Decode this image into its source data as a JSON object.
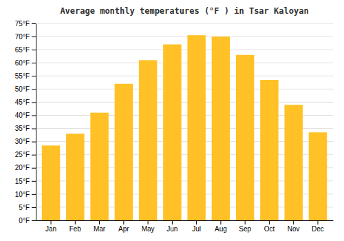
{
  "chart_data": {
    "type": "bar",
    "title": "Average monthly temperatures (°F ) in Tsar Kaloyan",
    "categories": [
      "Jan",
      "Feb",
      "Mar",
      "Apr",
      "May",
      "Jun",
      "Jul",
      "Aug",
      "Sep",
      "Oct",
      "Nov",
      "Dec"
    ],
    "values": [
      28.5,
      33,
      41,
      52,
      61,
      67,
      70.5,
      70,
      63,
      53.5,
      44,
      33.5
    ],
    "color": "#FFC125",
    "ylim": [
      0,
      75
    ],
    "yticks": [
      {
        "value": 0,
        "label": "0°F"
      },
      {
        "value": 5,
        "label": "5°F"
      },
      {
        "value": 10,
        "label": "10°F"
      },
      {
        "value": 15,
        "label": "15°F"
      },
      {
        "value": 20,
        "label": "20°F"
      },
      {
        "value": 25,
        "label": "25°F"
      },
      {
        "value": 30,
        "label": "30°F"
      },
      {
        "value": 35,
        "label": "35°F"
      },
      {
        "value": 40,
        "label": "40°F"
      },
      {
        "value": 45,
        "label": "45°F"
      },
      {
        "value": 50,
        "label": "50°F"
      },
      {
        "value": 55,
        "label": "55°F"
      },
      {
        "value": 60,
        "label": "60°F"
      },
      {
        "value": 65,
        "label": "65°F"
      },
      {
        "value": 70,
        "label": "70°F"
      },
      {
        "value": 75,
        "label": "75°F"
      }
    ],
    "grid": true
  }
}
